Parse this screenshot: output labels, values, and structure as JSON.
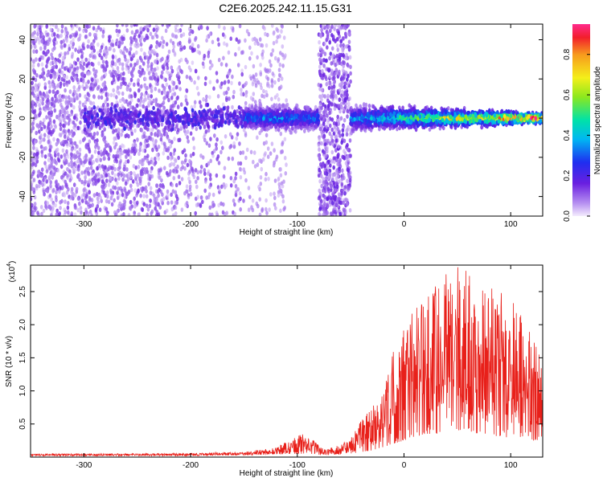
{
  "title": "C2E6.2025.242.11.15.G31",
  "colors": {
    "spec_points": "#7a1fe6",
    "spec_light": "#c8a6f2",
    "snr_line": "#e8201a",
    "frame": "#000000"
  },
  "chart_data": [
    {
      "type": "heatmap",
      "name": "spectrogram",
      "title": "C2E6.2025.242.11.15.G31",
      "xlabel": "Height of straight line (km)",
      "ylabel": "Frequency (Hz)",
      "xlim": [
        -350,
        130
      ],
      "ylim": [
        -50,
        48
      ],
      "xticks": [
        -300,
        -200,
        -100,
        0,
        100
      ],
      "yticks": [
        -40,
        -20,
        0,
        20,
        40
      ],
      "colorbar": {
        "label": "Normalized spectral amplitude",
        "range": [
          0.0,
          0.95
        ],
        "ticks": [
          0.0,
          0.2,
          0.4,
          0.6,
          0.8
        ]
      },
      "features": [
        {
          "desc": "scattered noise",
          "x_range": [
            -350,
            -150
          ],
          "freq_range": [
            -50,
            48
          ],
          "amplitude": 0.1
        },
        {
          "desc": "signal band",
          "x_range": [
            -150,
            -80
          ],
          "freq_center": 0,
          "amplitude": 0.3
        },
        {
          "desc": "vertical noise band",
          "x_range": [
            -80,
            -50
          ],
          "freq_range": [
            -50,
            48
          ],
          "amplitude": 0.12
        },
        {
          "desc": "signal band",
          "x_range": [
            -50,
            130
          ],
          "freq_center": 0,
          "amplitude_start": 0.3,
          "amplitude_end": 0.85
        }
      ]
    },
    {
      "type": "line",
      "name": "snr",
      "xlabel": "Height of straight line (km)",
      "ylabel": "SNR (10 * v/v)",
      "y_scale_label": "(x10",
      "y_scale_exp": "4",
      "xlim": [
        -350,
        130
      ],
      "ylim": [
        0,
        2.9
      ],
      "xticks": [
        -300,
        -200,
        -100,
        0,
        100
      ],
      "yticks": [
        0.5,
        1.0,
        1.5,
        2.0,
        2.5
      ],
      "series": [
        {
          "name": "SNR envelope",
          "x": [
            -350,
            -300,
            -200,
            -150,
            -120,
            -105,
            -95,
            -85,
            -75,
            -60,
            -50,
            -40,
            -30,
            -20,
            -10,
            0,
            10,
            20,
            30,
            40,
            50,
            60,
            70,
            80,
            90,
            100,
            110,
            120,
            130
          ],
          "max": [
            0.05,
            0.05,
            0.06,
            0.08,
            0.15,
            0.28,
            0.35,
            0.25,
            0.12,
            0.18,
            0.3,
            0.55,
            0.75,
            1.0,
            1.6,
            2.0,
            2.3,
            2.6,
            2.75,
            2.8,
            2.9,
            2.85,
            2.7,
            2.6,
            2.5,
            2.4,
            2.2,
            1.85,
            1.4
          ],
          "min": [
            0.02,
            0.02,
            0.02,
            0.03,
            0.04,
            0.05,
            0.05,
            0.04,
            0.03,
            0.04,
            0.05,
            0.08,
            0.1,
            0.15,
            0.2,
            0.25,
            0.3,
            0.35,
            0.35,
            0.4,
            0.4,
            0.4,
            0.35,
            0.35,
            0.3,
            0.3,
            0.3,
            0.25,
            0.25
          ]
        }
      ]
    }
  ]
}
